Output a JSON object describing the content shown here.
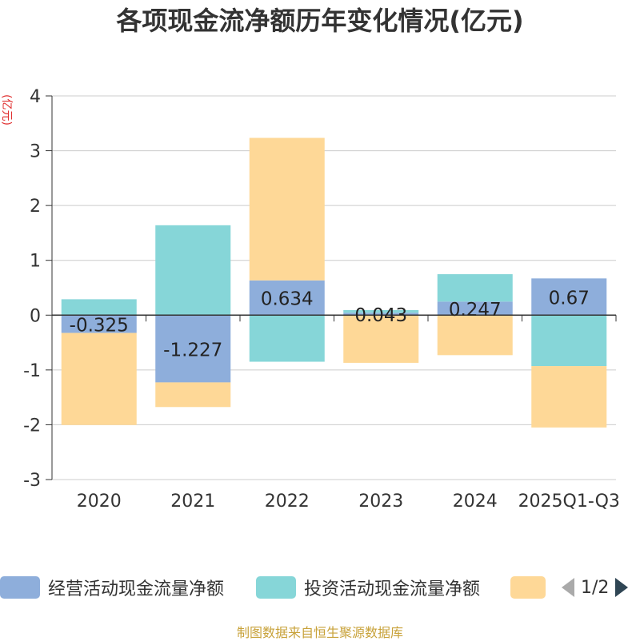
{
  "chart_data": {
    "type": "bar",
    "stacked": true,
    "title": "各项现金流净额历年变化情况(亿元)",
    "ylabel": "(亿元)",
    "xlabel": "",
    "ylim": [
      -3,
      4
    ],
    "yticks": [
      -3,
      -2,
      -1,
      0,
      1,
      2,
      3,
      4
    ],
    "categories": [
      "2020",
      "2021",
      "2022",
      "2023",
      "2024",
      "2025Q1-Q3"
    ],
    "series": [
      {
        "name": "经营活动现金流量净额",
        "color": "#8eaedb",
        "values": [
          -0.325,
          -1.227,
          0.634,
          0.043,
          0.247,
          0.67
        ],
        "labels": [
          "-0.325",
          "-1.227",
          "0.634",
          "0.043",
          "0.247",
          "0.67"
        ]
      },
      {
        "name": "投资活动现金流量净额",
        "color": "#86d6d8",
        "values": [
          0.29,
          1.64,
          -0.85,
          0.05,
          0.5,
          -0.93
        ]
      },
      {
        "name": "",
        "color": "#fed897",
        "values": [
          -1.68,
          -0.45,
          2.6,
          -0.87,
          -0.73,
          -1.12
        ]
      }
    ],
    "legend_position": "bottom"
  },
  "legend": {
    "items": [
      {
        "label": "经营活动现金流量净额",
        "color": "#8eaedb"
      },
      {
        "label": "投资活动现金流量净额",
        "color": "#86d6d8"
      },
      {
        "label": "",
        "color": "#fed897"
      }
    ],
    "pager": "1/2"
  },
  "source": "制图数据来自恒生聚源数据库"
}
